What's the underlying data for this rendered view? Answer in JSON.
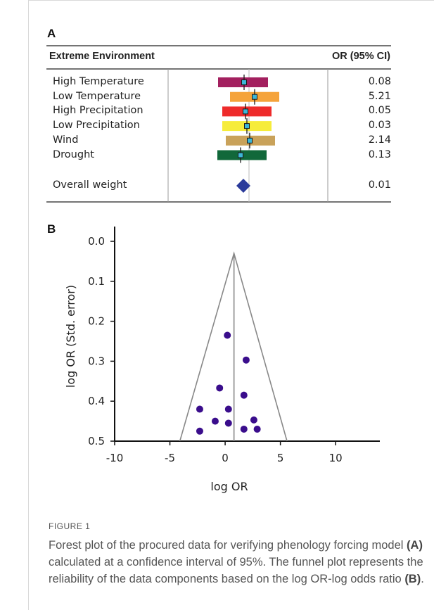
{
  "panel_a": {
    "letter": "A",
    "col_left": "Extreme Environment",
    "col_right": "OR (95% CI)"
  },
  "panel_b": {
    "letter": "B"
  },
  "figure": {
    "label": "FIGURE 1",
    "caption_1": "Forest plot of the procured data for verifying phenology forcing model ",
    "caption_a": "(A)",
    "caption_2": " calculated at a confidence interval of 95%. The funnel plot represents the reliability of the data components based on the log OR-log odds ratio ",
    "caption_b": "(B)",
    "caption_3": "."
  },
  "chart_data": [
    {
      "type": "table",
      "columns": [
        "Extreme Environment",
        "OR (95% CI)"
      ],
      "rows": [
        {
          "label": "High Temperature",
          "or": "0.08",
          "color": "#a3205f"
        },
        {
          "label": "Low Temperature",
          "or": "5.21",
          "color": "#f5a33a"
        },
        {
          "label": "High Precipitation",
          "or": "0.05",
          "color": "#ee2b2b"
        },
        {
          "label": "Low Precipitation",
          "or": "0.03",
          "color": "#f6ec3b"
        },
        {
          "label": "Wind",
          "or": "2.14",
          "color": "#c9a25a"
        },
        {
          "label": "Drought",
          "or": "0.13",
          "color": "#11683a"
        }
      ],
      "summary": {
        "label": "Overall weight",
        "or": "0.01",
        "color": "#2a3a9a"
      },
      "marker_color": "#3cb7d8"
    },
    {
      "type": "scatter",
      "xlabel": "log OR",
      "ylabel": "log OR (Std. error)",
      "xlim": [
        -10,
        14
      ],
      "ylim": [
        0.5,
        0.0
      ],
      "y_reversed": true,
      "xticks": [
        -10,
        -5,
        0,
        5,
        10
      ],
      "yticks": [
        0.0,
        0.1,
        0.2,
        0.3,
        0.4,
        0.5
      ],
      "point_color": "#3a0d8c",
      "funnel": {
        "apex": [
          0.8,
          0.03
        ],
        "base_left": [
          -4.1,
          0.5
        ],
        "base_right": [
          5.6,
          0.5
        ],
        "center_x": 0.8
      },
      "points": [
        {
          "x": 0.2,
          "y": 0.235
        },
        {
          "x": 1.9,
          "y": 0.297
        },
        {
          "x": -0.5,
          "y": 0.367
        },
        {
          "x": 1.7,
          "y": 0.385
        },
        {
          "x": -2.3,
          "y": 0.42
        },
        {
          "x": 0.3,
          "y": 0.42
        },
        {
          "x": -0.9,
          "y": 0.45
        },
        {
          "x": 0.3,
          "y": 0.455
        },
        {
          "x": 2.6,
          "y": 0.447
        },
        {
          "x": -2.3,
          "y": 0.475
        },
        {
          "x": 1.7,
          "y": 0.47
        },
        {
          "x": 2.9,
          "y": 0.47
        }
      ]
    }
  ]
}
